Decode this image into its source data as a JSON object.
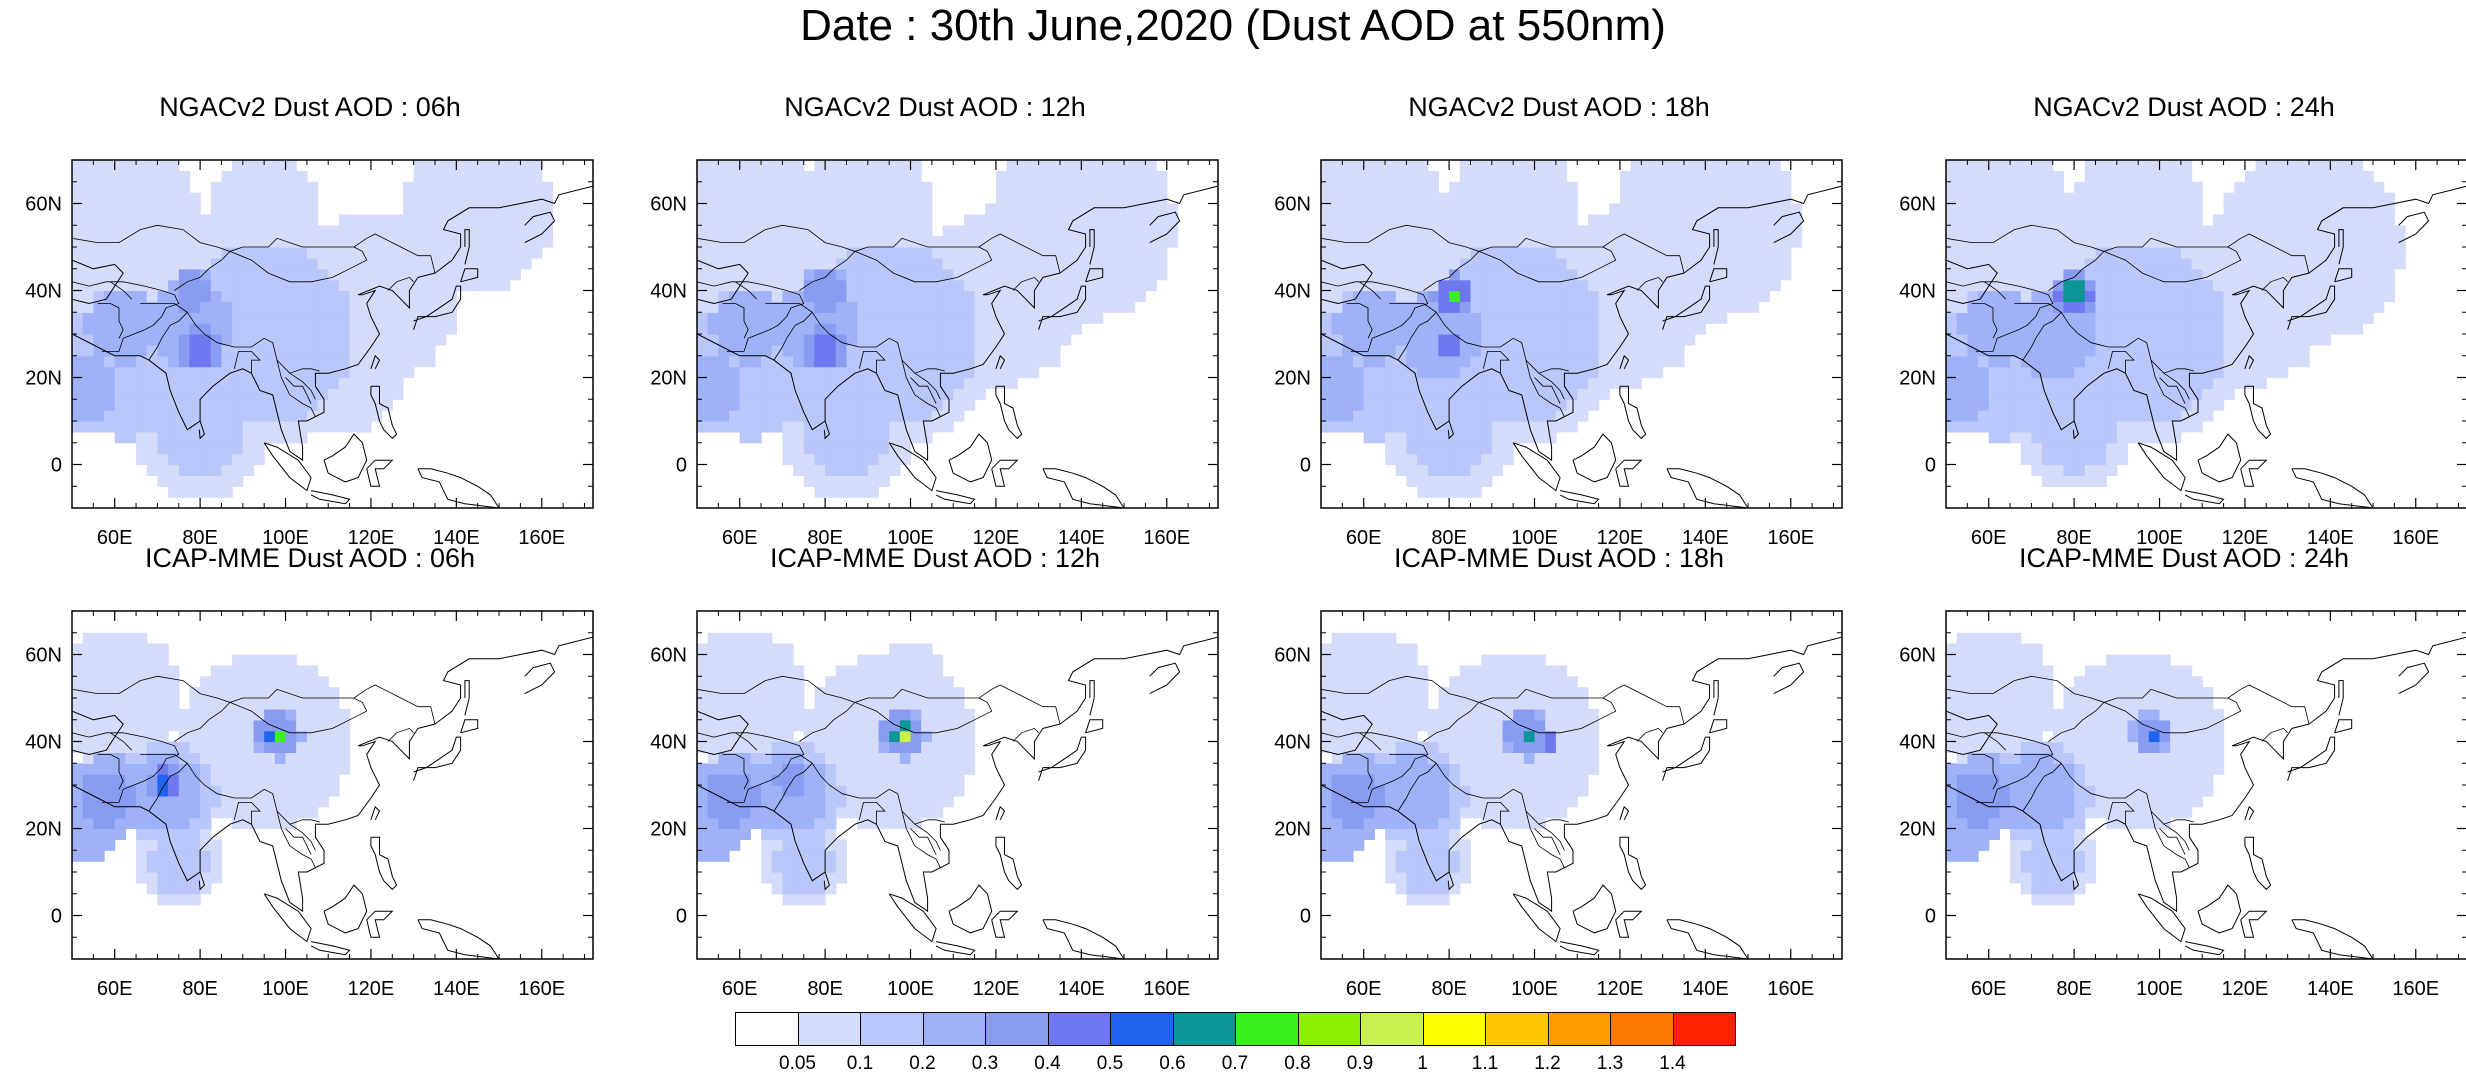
{
  "title": "Date : 30th June,2020 (Dust AOD at 550nm)",
  "panels": [
    {
      "title": "NGACv2 Dust AOD : 06h"
    },
    {
      "title": "NGACv2 Dust AOD : 12h"
    },
    {
      "title": "NGACv2 Dust AOD : 18h"
    },
    {
      "title": "NGACv2 Dust AOD : 24h"
    },
    {
      "title": "ICAP-MME Dust AOD : 06h"
    },
    {
      "title": "ICAP-MME Dust AOD : 12h"
    },
    {
      "title": "ICAP-MME Dust AOD : 18h"
    },
    {
      "title": "ICAP-MME Dust AOD : 24h"
    }
  ],
  "map_extent": {
    "lon": [
      50,
      172
    ],
    "lat": [
      -10,
      70
    ]
  },
  "lon_ticks": [
    "60E",
    "80E",
    "100E",
    "120E",
    "140E",
    "160E"
  ],
  "lat_ticks": [
    "60N",
    "40N",
    "20N",
    "0"
  ],
  "colorbar": {
    "labels": [
      "0.05",
      "0.1",
      "0.2",
      "0.3",
      "0.4",
      "0.5",
      "0.6",
      "0.7",
      "0.8",
      "0.9",
      "1",
      "1.1",
      "1.2",
      "1.3",
      "1.4"
    ],
    "colors": [
      "#ffffff",
      "#d4dcfa",
      "#b9c7fa",
      "#9fb2f8",
      "#8a9cf2",
      "#6f78ef",
      "#1e64ef",
      "#0d9696",
      "#3cef1e",
      "#8cf000",
      "#c8f050",
      "#ffff00",
      "#ffc800",
      "#ff9e00",
      "#ff7800",
      "#ff2200"
    ]
  }
}
